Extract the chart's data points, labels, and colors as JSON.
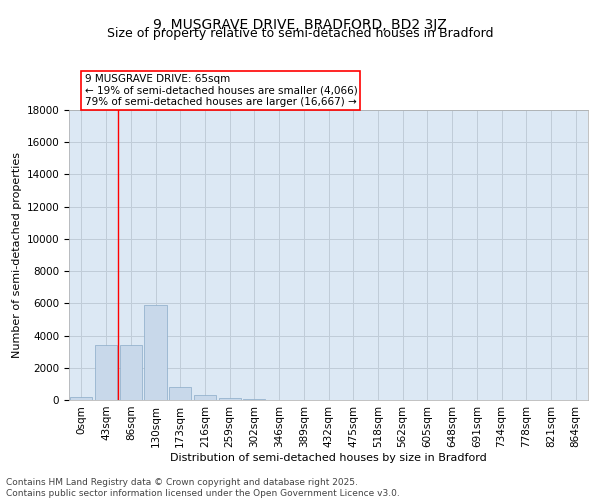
{
  "title_line1": "9, MUSGRAVE DRIVE, BRADFORD, BD2 3JZ",
  "title_line2": "Size of property relative to semi-detached houses in Bradford",
  "xlabel": "Distribution of semi-detached houses by size in Bradford",
  "ylabel": "Number of semi-detached properties",
  "categories": [
    "0sqm",
    "43sqm",
    "86sqm",
    "130sqm",
    "173sqm",
    "216sqm",
    "259sqm",
    "302sqm",
    "346sqm",
    "389sqm",
    "432sqm",
    "475sqm",
    "518sqm",
    "562sqm",
    "605sqm",
    "648sqm",
    "691sqm",
    "734sqm",
    "778sqm",
    "821sqm",
    "864sqm"
  ],
  "bar_values": [
    200,
    3400,
    3400,
    5900,
    800,
    300,
    150,
    80,
    0,
    0,
    0,
    0,
    0,
    0,
    0,
    0,
    0,
    0,
    0,
    0,
    0
  ],
  "bar_color": "#c8d8ea",
  "bar_edge_color": "#8aaac8",
  "grid_color": "#c0ccd8",
  "background_color": "#dce8f4",
  "annotation_box_text": "9 MUSGRAVE DRIVE: 65sqm\n← 19% of semi-detached houses are smaller (4,066)\n79% of semi-detached houses are larger (16,667) →",
  "annotation_box_color": "red",
  "property_line_x": 1.5,
  "ylim": [
    0,
    18000
  ],
  "yticks": [
    0,
    2000,
    4000,
    6000,
    8000,
    10000,
    12000,
    14000,
    16000,
    18000
  ],
  "footer_text": "Contains HM Land Registry data © Crown copyright and database right 2025.\nContains public sector information licensed under the Open Government Licence v3.0.",
  "title_fontsize": 10,
  "subtitle_fontsize": 9,
  "annotation_fontsize": 7.5,
  "footer_fontsize": 6.5,
  "axis_label_fontsize": 8,
  "tick_fontsize": 7.5
}
